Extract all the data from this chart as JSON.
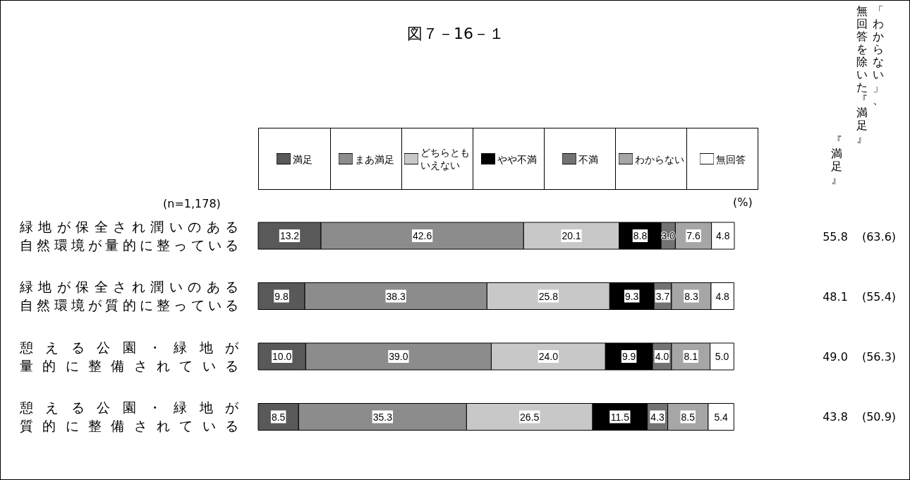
{
  "chart_data": {
    "type": "bar",
    "orientation": "horizontal",
    "stacked": true,
    "title": "図７－16－１",
    "categories": [
      "緑地が保全され潤いのある自然環境が量的に整っている",
      "緑地が保全され潤いのある自然環境が質的に整っている",
      "憩える公園・緑地が量的に整備されている",
      "憩える公園・緑地が質的に整備されている"
    ],
    "series": [
      {
        "name": "満足",
        "color": "#595959",
        "values": [
          13.2,
          9.8,
          10.0,
          8.5
        ],
        "value_labels": [
          "13.2",
          "9.8",
          "10.0",
          "8.5"
        ]
      },
      {
        "name": "まあ満足",
        "color": "#8c8c8c",
        "values": [
          42.6,
          38.3,
          39.0,
          35.3
        ],
        "value_labels": [
          "42.6",
          "38.3",
          "39.0",
          "35.3"
        ]
      },
      {
        "name": "どちらともいえない",
        "color": "#c8c8c8",
        "values": [
          20.1,
          25.8,
          24.0,
          26.5
        ],
        "value_labels": [
          "20.1",
          "25.8",
          "24.0",
          "26.5"
        ]
      },
      {
        "name": "やや不満",
        "color": "#000000",
        "values": [
          8.8,
          9.3,
          9.9,
          11.5
        ],
        "value_labels": [
          "8.8",
          "9.3",
          "9.9",
          "11.5"
        ]
      },
      {
        "name": "不満",
        "color": "#737373",
        "values": [
          3.0,
          3.7,
          4.0,
          4.3
        ],
        "value_labels": [
          "3.0",
          "3.7",
          "4.0",
          "4.3"
        ]
      },
      {
        "name": "わからない",
        "color": "#a6a6a6",
        "values": [
          7.6,
          8.3,
          8.1,
          8.5
        ],
        "value_labels": [
          "7.6",
          "8.3",
          "8.1",
          "8.5"
        ]
      },
      {
        "name": "無回答",
        "color": "#ffffff",
        "values": [
          4.8,
          4.8,
          5.0,
          5.4
        ],
        "value_labels": [
          "4.8",
          "4.8",
          "5.0",
          "5.4"
        ]
      }
    ],
    "legend": "top",
    "annotations": [
      "(n=1,178)",
      "(%)",
      "『満足』",
      "「わからない」、無回答を除いた『満足』",
      "55.8",
      "(63.6)",
      "48.1",
      "(55.4)",
      "49.0",
      "(56.3)",
      "43.8",
      "(50.9)"
    ]
  }
}
